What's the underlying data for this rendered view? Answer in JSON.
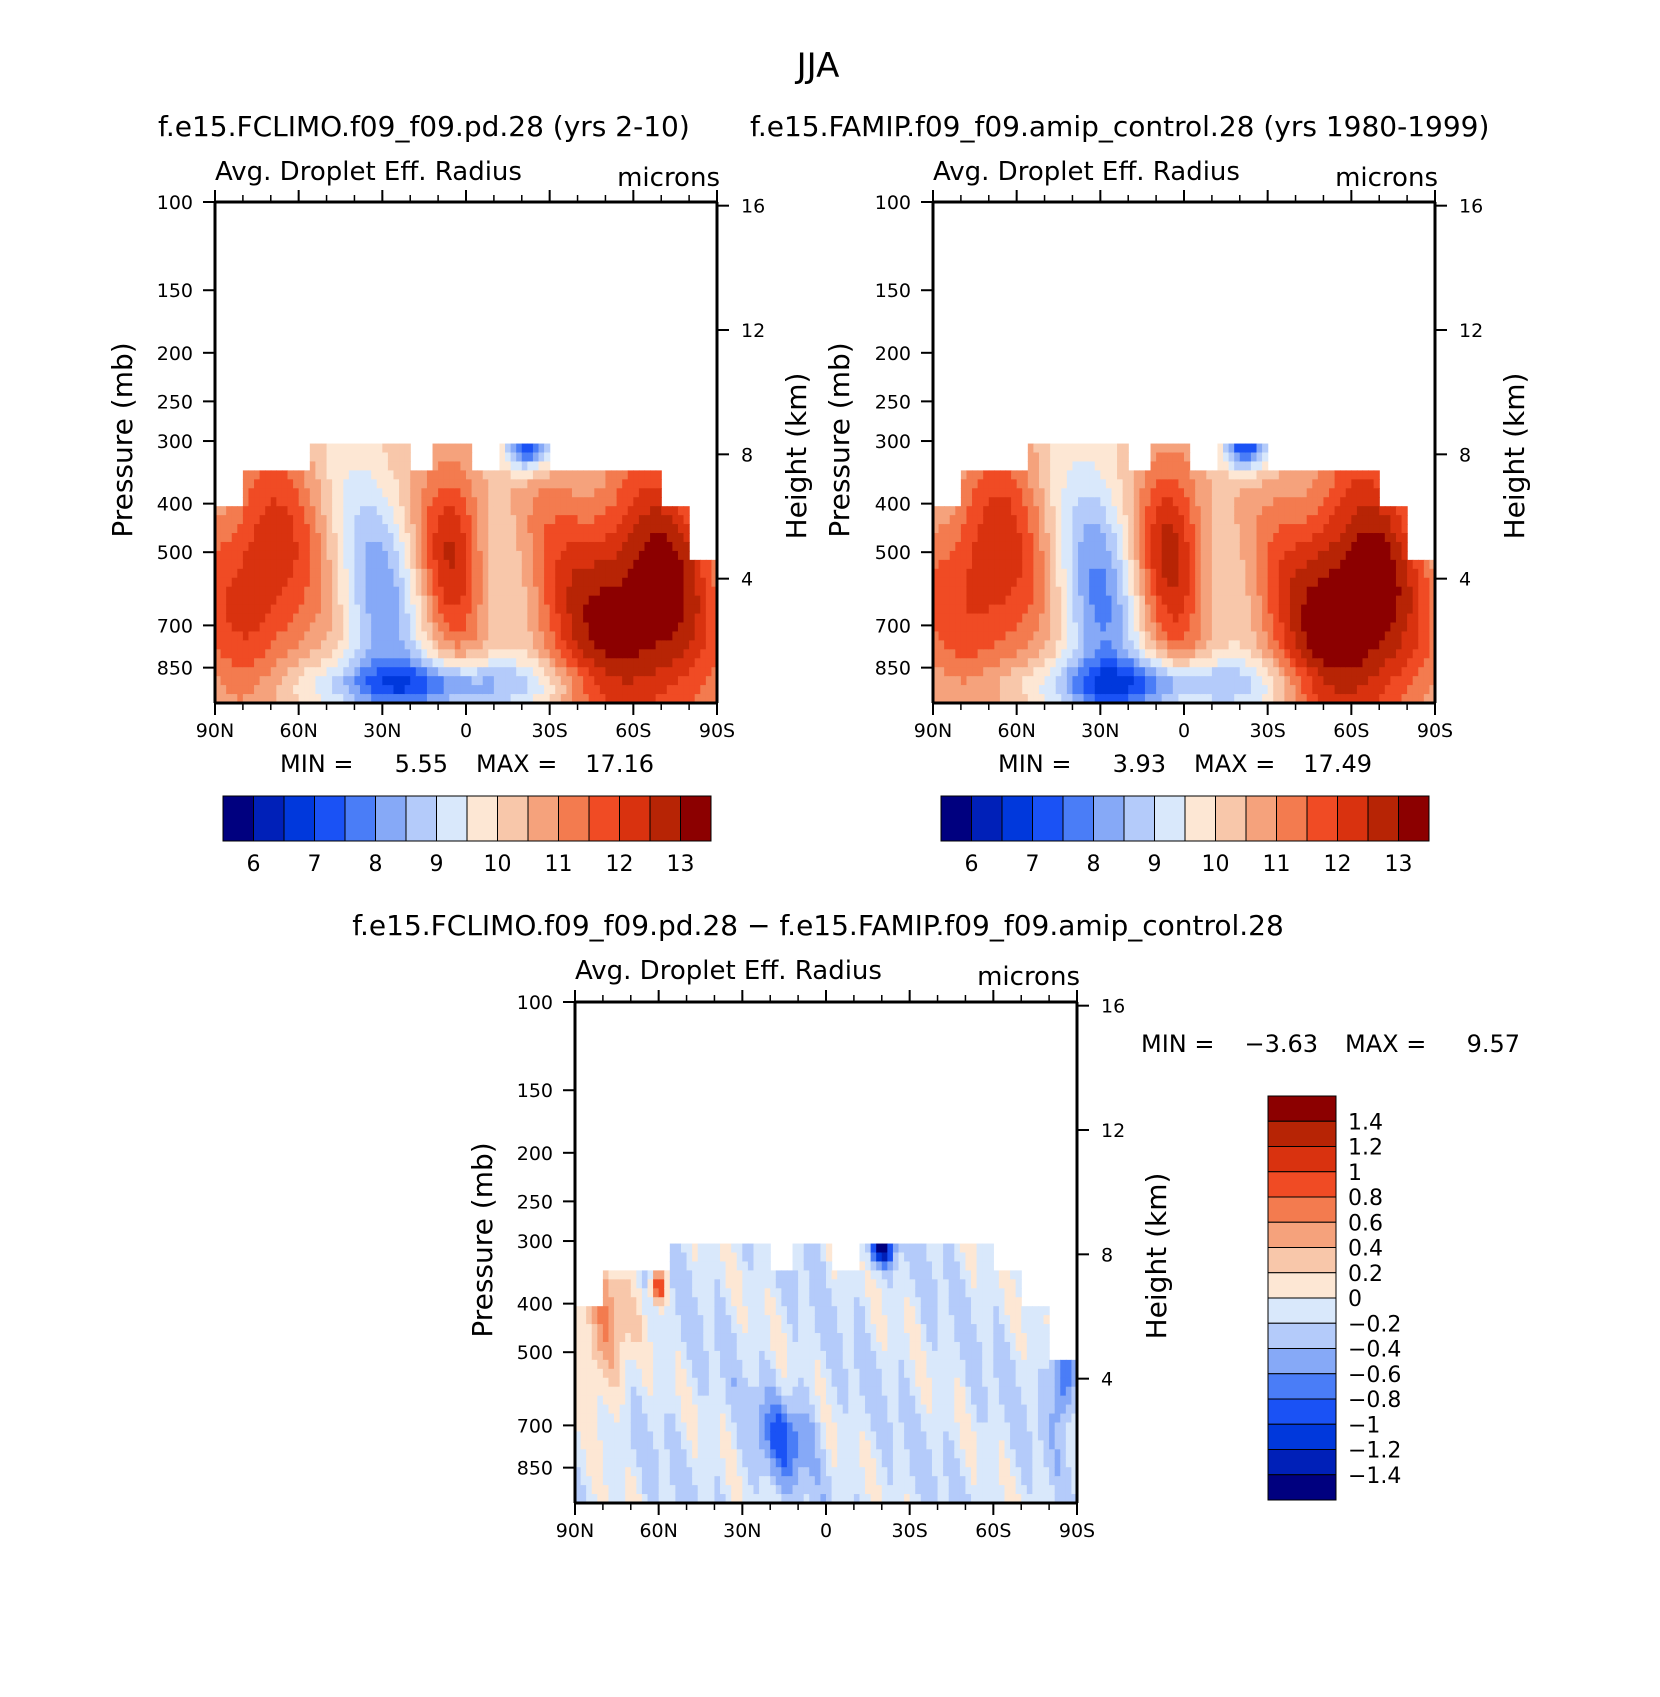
{
  "figure": {
    "title": "JJA"
  },
  "colors": {
    "abs": [
      "#00007f",
      "#0020b8",
      "#0038dc",
      "#1a52f5",
      "#4a7df7",
      "#86a9f7",
      "#b4cbfa",
      "#d9e8fb",
      "#fde7d4",
      "#f8c7aa",
      "#f5a27c",
      "#f37b4f",
      "#f04b24",
      "#d9320f",
      "#b72405",
      "#8c0000"
    ],
    "diff": [
      "#00007f",
      "#0020b8",
      "#0038dc",
      "#1a52f5",
      "#4a7df7",
      "#86a9f7",
      "#b4cbfa",
      "#d9e8fb",
      "#fde7d4",
      "#f8c7aa",
      "#f5a27c",
      "#f37b4f",
      "#f04b24",
      "#d9320f",
      "#b72405",
      "#8c0000"
    ]
  },
  "chart_data": [
    {
      "type": "heatmap",
      "name": "test",
      "title": "f.e15.FCLIMO.f09_f09.pd.28 (yrs 2-10)",
      "subtitle_left": "Avg. Droplet Eff. Radius",
      "subtitle_right": "microns",
      "ylabel": "Pressure (mb)",
      "y2label": "Height (km)",
      "x_ticks": [
        "90N",
        "60N",
        "30N",
        "0",
        "30S",
        "60S",
        "90S"
      ],
      "y_ticks": [
        100,
        150,
        200,
        250,
        300,
        400,
        500,
        700,
        850
      ],
      "y2_ticks": [
        16,
        12,
        8,
        4
      ],
      "min_label": "MIN =",
      "min_value": "5.55",
      "max_label": "MAX =",
      "max_value": "17.16",
      "colorbar_labels": [
        "6",
        "7",
        "8",
        "9",
        "10",
        "11",
        "12",
        "13"
      ],
      "ylim": [
        100,
        1000
      ],
      "data_top_pressure": 300
    },
    {
      "type": "heatmap",
      "name": "control",
      "title": "f.e15.FAMIP.f09_f09.amip_control.28 (yrs 1980-1999)",
      "subtitle_left": "Avg. Droplet Eff. Radius",
      "subtitle_right": "microns",
      "ylabel": "Pressure (mb)",
      "y2label": "Height (km)",
      "x_ticks": [
        "90N",
        "60N",
        "30N",
        "0",
        "30S",
        "60S",
        "90S"
      ],
      "y_ticks": [
        100,
        150,
        200,
        250,
        300,
        400,
        500,
        700,
        850
      ],
      "y2_ticks": [
        16,
        12,
        8,
        4
      ],
      "min_label": "MIN =",
      "min_value": "3.93",
      "max_label": "MAX =",
      "max_value": "17.49",
      "colorbar_labels": [
        "6",
        "7",
        "8",
        "9",
        "10",
        "11",
        "12",
        "13"
      ],
      "ylim": [
        100,
        1000
      ],
      "data_top_pressure": 300
    },
    {
      "type": "heatmap",
      "name": "difference",
      "title": "f.e15.FCLIMO.f09_f09.pd.28 − f.e15.FAMIP.f09_f09.amip_control.28",
      "subtitle_left": "Avg. Droplet Eff. Radius",
      "subtitle_right": "microns",
      "ylabel": "Pressure (mb)",
      "y2label": "Height (km)",
      "x_ticks": [
        "90N",
        "60N",
        "30N",
        "0",
        "30S",
        "60S",
        "90S"
      ],
      "y_ticks": [
        100,
        150,
        200,
        250,
        300,
        400,
        500,
        700,
        850
      ],
      "y2_ticks": [
        16,
        12,
        8,
        4
      ],
      "min_label": "MIN =",
      "min_value": "−3.63",
      "max_label": "MAX =",
      "max_value": "9.57",
      "colorbar_labels": [
        "1.4",
        "1.2",
        "1",
        "0.8",
        "0.6",
        "0.4",
        "0.2",
        "0",
        "−0.2",
        "−0.4",
        "−0.6",
        "−0.8",
        "−1",
        "−1.2",
        "−1.4"
      ],
      "ylim": [
        100,
        1000
      ],
      "data_top_pressure": 300
    }
  ]
}
